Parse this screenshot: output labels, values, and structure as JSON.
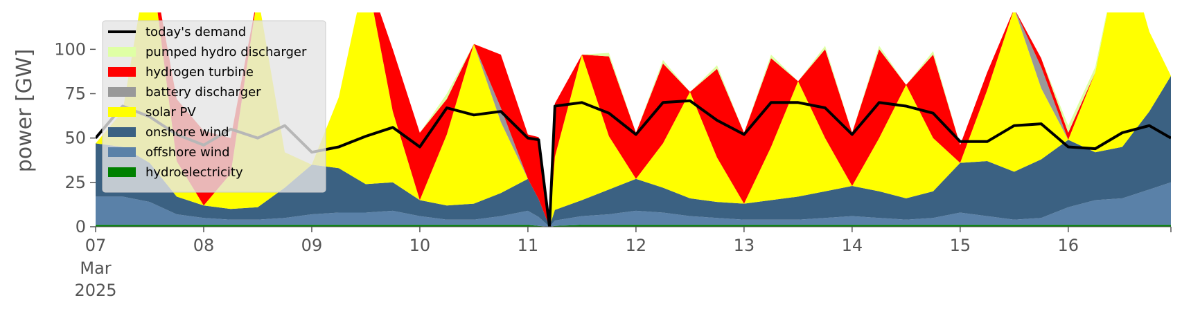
{
  "chart_data": {
    "type": "area",
    "ylabel": "power [GW]",
    "xlabel": "",
    "ylim": [
      0,
      120
    ],
    "y_ticks": [
      "0",
      "25",
      "50",
      "75",
      "100"
    ],
    "x_ticks": [
      "07",
      "08",
      "09",
      "10",
      "11",
      "12",
      "13",
      "14",
      "15",
      "16"
    ],
    "x_sub_labels": [
      "Mar",
      "2025"
    ],
    "x": [
      7.0,
      7.25,
      7.5,
      7.75,
      8.0,
      8.25,
      8.5,
      8.75,
      9.0,
      9.25,
      9.5,
      9.75,
      10.0,
      10.25,
      10.5,
      10.75,
      11.0,
      11.1,
      11.2,
      11.25,
      11.5,
      11.75,
      12.0,
      12.25,
      12.5,
      12.75,
      13.0,
      13.25,
      13.5,
      13.75,
      14.0,
      14.25,
      14.5,
      14.75,
      15.0,
      15.25,
      15.5,
      15.75,
      16.0,
      16.25,
      16.5,
      16.75,
      16.95
    ],
    "legend_position": "top-left",
    "grid": false,
    "series": [
      {
        "name": "hydroelectricity",
        "color": "#008000",
        "values": [
          1,
          1,
          1,
          1,
          1,
          1,
          1,
          1,
          1,
          1,
          1,
          1,
          1,
          1,
          1,
          1,
          1,
          0.5,
          0,
          0.5,
          1,
          1,
          1,
          1,
          1,
          1,
          1,
          1,
          1,
          1,
          1,
          1,
          1,
          1,
          1,
          1,
          1,
          1,
          1,
          1,
          1,
          1,
          1
        ]
      },
      {
        "name": "offshore wind",
        "color": "#5a81a8",
        "values": [
          16,
          16,
          13,
          6,
          4,
          3,
          3,
          4,
          6,
          7,
          7,
          8,
          5,
          3,
          3,
          5,
          8,
          5,
          0,
          3,
          5,
          6,
          8,
          7,
          5,
          4,
          3,
          3,
          3,
          4,
          5,
          4,
          3,
          4,
          7,
          5,
          3,
          4,
          10,
          14,
          15,
          20,
          24
        ]
      },
      {
        "name": "onshore wind",
        "color": "#3b6182",
        "values": [
          30,
          28,
          22,
          10,
          7,
          6,
          7,
          17,
          28,
          25,
          16,
          16,
          9,
          8,
          9,
          13,
          18,
          10,
          0,
          6,
          9,
          14,
          18,
          14,
          10,
          9,
          9,
          11,
          13,
          15,
          17,
          15,
          12,
          15,
          28,
          31,
          27,
          33,
          38,
          27,
          29,
          44,
          60
        ]
      },
      {
        "name": "solar PV",
        "color": "#ffff00",
        "values": [
          0,
          20,
          120,
          20,
          0,
          20,
          120,
          20,
          0,
          40,
          120,
          40,
          0,
          40,
          90,
          40,
          0,
          0,
          0,
          30,
          82,
          30,
          0,
          25,
          60,
          25,
          0,
          30,
          65,
          30,
          0,
          30,
          64,
          30,
          0,
          40,
          92,
          40,
          0,
          45,
          118,
          45,
          0
        ]
      },
      {
        "name": "battery discharger",
        "color": "#999999",
        "values": [
          0,
          0,
          0,
          0,
          0,
          0,
          0,
          0,
          0,
          0,
          0,
          0,
          0,
          0,
          0,
          8,
          0,
          0,
          0,
          0,
          0,
          0,
          0,
          0,
          0,
          0,
          0,
          0,
          0,
          0,
          0,
          0,
          0,
          0,
          0,
          0,
          0,
          12,
          0,
          0,
          0,
          0,
          0
        ]
      },
      {
        "name": "hydrogen turbine",
        "color": "#ff0000",
        "values": [
          0,
          0,
          0,
          35,
          42,
          20,
          0,
          0,
          0,
          0,
          0,
          35,
          38,
          20,
          0,
          30,
          25,
          35,
          0,
          30,
          0,
          45,
          26,
          45,
          0,
          50,
          40,
          50,
          0,
          50,
          30,
          50,
          0,
          47,
          10,
          10,
          0,
          5,
          4,
          0,
          0,
          0,
          0
        ]
      },
      {
        "name": "pumped hydro discharger",
        "color": "#dfffa5",
        "values": [
          0,
          0,
          0,
          0,
          0,
          0,
          0,
          0,
          0,
          0,
          0,
          0,
          0,
          3,
          0,
          0,
          0,
          0,
          0,
          0,
          0,
          2,
          0,
          2,
          0,
          2,
          0,
          2,
          0,
          2,
          0,
          2,
          0,
          2,
          0,
          0,
          0,
          0,
          4,
          3,
          0,
          0,
          0
        ]
      },
      {
        "name": "today's demand",
        "color": "#000000",
        "line": true,
        "values": [
          50,
          68,
          62,
          52,
          46,
          55,
          50,
          57,
          42,
          45,
          51,
          56,
          45,
          67,
          63,
          65,
          50,
          49,
          0,
          68,
          70,
          64,
          52,
          70,
          71,
          60,
          52,
          70,
          70,
          67,
          52,
          70,
          68,
          64,
          48,
          48,
          57,
          58,
          45,
          44,
          53,
          57,
          50
        ]
      }
    ]
  }
}
